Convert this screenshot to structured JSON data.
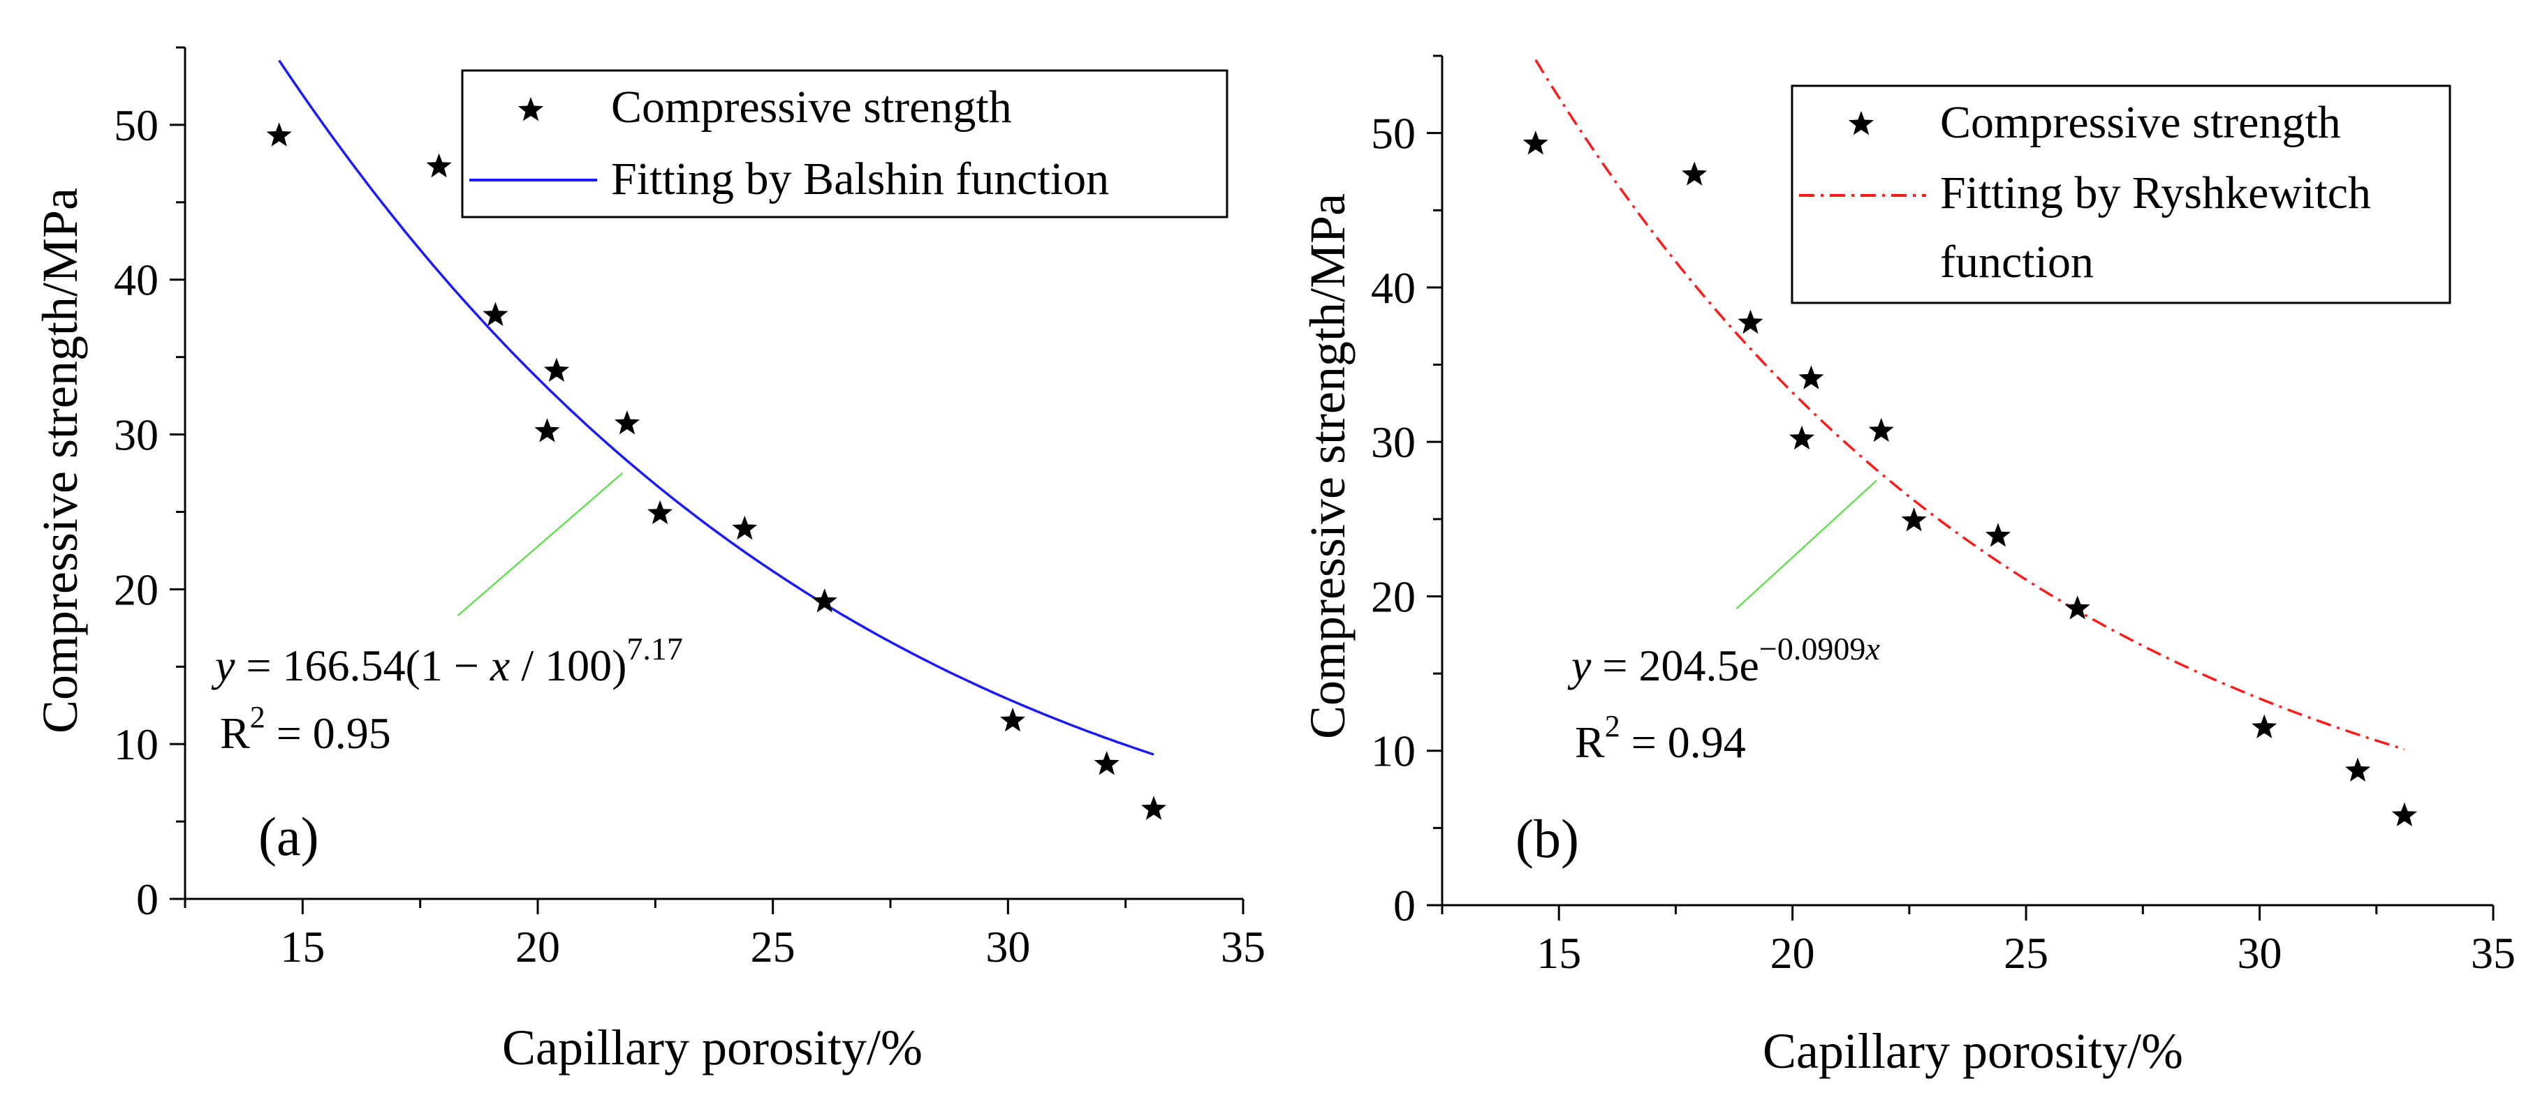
{
  "colors": {
    "axis": "#000000",
    "points": "#000000",
    "balshin_fit": "#1a1aff",
    "ryshkewitch_fit": "#ff1a1a",
    "leader": "#66dd55",
    "legend_border": "#000000"
  },
  "chart_data": [
    {
      "type": "scatter",
      "panel_label": "(a)",
      "xlabel": "Capillary porosity/%",
      "ylabel": "Compressive strength/MPa",
      "xlim": [
        12.5,
        35
      ],
      "ylim": [
        0,
        55
      ],
      "xticks": [
        15,
        20,
        25,
        30,
        35
      ],
      "yticks": [
        0,
        10,
        20,
        30,
        40,
        50
      ],
      "grid": false,
      "legend": {
        "position": "top-right",
        "entries": [
          {
            "label": "Compressive strength",
            "marker": "star-icon"
          },
          {
            "label": "Fitting by Balshin function",
            "line": "solid"
          }
        ]
      },
      "series": [
        {
          "name": "Compressive strength",
          "kind": "scatter",
          "x": [
            14.5,
            17.9,
            19.1,
            20.4,
            20.2,
            21.9,
            22.6,
            24.4,
            26.1,
            30.1,
            32.1,
            33.1
          ],
          "y": [
            49.3,
            47.3,
            37.7,
            34.1,
            30.2,
            30.7,
            24.9,
            23.9,
            19.2,
            11.5,
            8.7,
            5.8
          ]
        },
        {
          "name": "Fitting by Balshin function",
          "kind": "fit",
          "model": "balshin",
          "params": {
            "a": 166.54,
            "n": 7.17
          },
          "x_range": [
            14.5,
            33.1
          ],
          "line": "solid"
        }
      ],
      "annotation": {
        "eq_y": "y",
        "eq_main": " = 166.54(1 − ",
        "eq_x": "x",
        "eq_rest": " / 100)",
        "eq_exp": "7.17",
        "r2_label": "R",
        "r2_sup": "2",
        "r2_value": " = 0.95",
        "leader_from": [
          18.3,
          18.3
        ],
        "leader_to": [
          21.8,
          27.5
        ]
      }
    },
    {
      "type": "scatter",
      "panel_label": "(b)",
      "xlabel": "Capillary porosity/%",
      "ylabel": "Compressive strength/MPa",
      "xlim": [
        12.5,
        35
      ],
      "ylim": [
        0,
        55
      ],
      "xticks": [
        15,
        20,
        25,
        30,
        35
      ],
      "yticks": [
        0,
        10,
        20,
        30,
        40,
        50
      ],
      "grid": false,
      "legend": {
        "position": "top-right",
        "entries": [
          {
            "label": "Compressive strength",
            "marker": "star-icon"
          },
          {
            "label": "Fitting by Ryshkewitch",
            "line": "dash-dot"
          },
          {
            "label": "function",
            "line": "none"
          }
        ]
      },
      "series": [
        {
          "name": "Compressive strength",
          "kind": "scatter",
          "x": [
            14.5,
            17.9,
            19.1,
            20.4,
            20.2,
            21.9,
            22.6,
            24.4,
            26.1,
            30.1,
            32.1,
            33.1
          ],
          "y": [
            49.3,
            47.3,
            37.7,
            34.1,
            30.2,
            30.7,
            24.9,
            23.9,
            19.2,
            11.5,
            8.7,
            5.8
          ]
        },
        {
          "name": "Fitting by Ryshkewitch function",
          "kind": "fit",
          "model": "ryshkewitch",
          "params": {
            "a": 204.5,
            "b": 0.0909
          },
          "x_range": [
            14.5,
            33.1
          ],
          "line": "dash-dot"
        }
      ],
      "annotation": {
        "eq_y": "y",
        "eq_main": " = 204.5e",
        "eq_exp_main": "−0.0909",
        "eq_exp_x": "x",
        "r2_label": "R",
        "r2_sup": "2",
        "r2_value": " = 0.94",
        "leader_from": [
          18.8,
          19.2
        ],
        "leader_to": [
          21.8,
          27.5
        ]
      }
    }
  ]
}
